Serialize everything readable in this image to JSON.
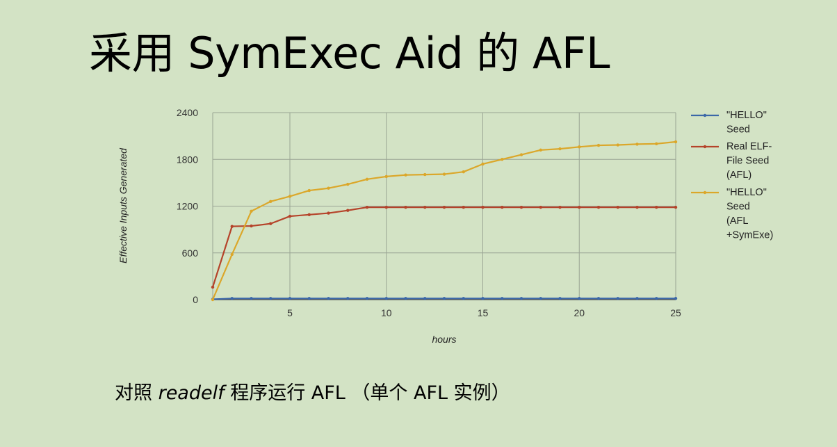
{
  "slide": {
    "title": "采用 SymExec Aid 的 AFL",
    "caption_prefix": "对照",
    "caption_program": "readelf",
    "caption_suffix": "程序运行 AFL （单个 AFL 实例）"
  },
  "chart_data": {
    "type": "line",
    "xlabel": "hours",
    "ylabel": "Effective Inputs Generated",
    "xlim": [
      1,
      25
    ],
    "ylim": [
      0,
      2400
    ],
    "x_ticks": [
      5,
      10,
      15,
      20,
      25
    ],
    "y_ticks": [
      0,
      600,
      1200,
      1800,
      2400
    ],
    "grid": true,
    "legend_position": "right",
    "x": [
      1,
      2,
      3,
      4,
      5,
      6,
      7,
      8,
      9,
      10,
      11,
      12,
      13,
      14,
      15,
      16,
      17,
      18,
      19,
      20,
      21,
      22,
      23,
      24,
      25
    ],
    "series": [
      {
        "name": "\"HELLO\" Seed",
        "legend_lines": [
          "\"HELLO\"",
          "Seed"
        ],
        "color": "#3b67a8",
        "values": [
          5,
          15,
          15,
          15,
          15,
          15,
          15,
          15,
          15,
          15,
          15,
          15,
          15,
          15,
          15,
          15,
          15,
          15,
          15,
          15,
          15,
          15,
          15,
          15,
          15
        ]
      },
      {
        "name": "Real ELF-File Seed (AFL)",
        "legend_lines": [
          "Real ELF-",
          "File Seed",
          "(AFL)"
        ],
        "color": "#b5432a",
        "values": [
          160,
          940,
          945,
          975,
          1070,
          1090,
          1110,
          1145,
          1185,
          1185,
          1185,
          1185,
          1185,
          1185,
          1185,
          1185,
          1185,
          1185,
          1185,
          1185,
          1185,
          1185,
          1185,
          1185,
          1185
        ]
      },
      {
        "name": "\"HELLO\" Seed (AFL +SymExe)",
        "legend_lines": [
          "\"HELLO\"",
          "Seed",
          "(AFL",
          "+SymExe)"
        ],
        "color": "#dba72a",
        "values": [
          0,
          580,
          1135,
          1260,
          1325,
          1400,
          1430,
          1480,
          1545,
          1580,
          1600,
          1605,
          1610,
          1640,
          1740,
          1800,
          1860,
          1920,
          1935,
          1960,
          1980,
          1985,
          1995,
          2000,
          2025
        ]
      }
    ]
  }
}
